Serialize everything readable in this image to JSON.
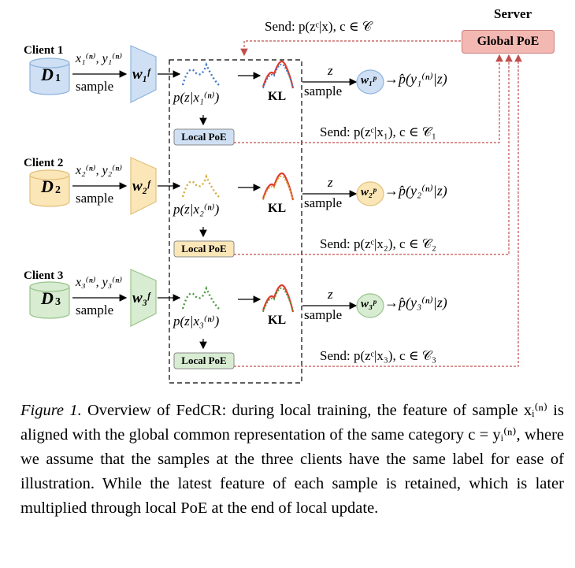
{
  "server": {
    "title": "Server",
    "global_label": "Global PoE",
    "send_global": "Send:  p(zᶜ|x), c ∈ 𝒞"
  },
  "clients": [
    {
      "name": "Client 1",
      "db": "D",
      "db_sub": "1",
      "xy": "x₁⁽ⁿ⁾, y₁⁽ⁿ⁾",
      "sample": "sample",
      "wf": "w₁ᶠ",
      "pz": "p(z|x₁⁽ⁿ⁾)",
      "kl": "KL",
      "z": "z",
      "sample2": "sample",
      "wp": "w₁ᵖ",
      "phat": "→p̂(y₁⁽ⁿ⁾|z)",
      "local_poe": "Local PoE",
      "send": "Send:  p(zᶜ|x₁), c ∈ 𝒞₁",
      "color_fill": "#cfe0f4",
      "color_stroke": "#8eb3dd",
      "curve_color": "#3c78c8"
    },
    {
      "name": "Client 2",
      "db": "D",
      "db_sub": "2",
      "xy": "x₂⁽ⁿ⁾, y₂⁽ⁿ⁾",
      "sample": "sample",
      "wf": "w₂ᶠ",
      "pz": "p(z|x₂⁽ⁿ⁾)",
      "kl": "KL",
      "z": "z",
      "sample2": "sample",
      "wp": "w₂ᵖ",
      "phat": "→p̂(y₂⁽ⁿ⁾|z)",
      "local_poe": "Local PoE",
      "send": "Send:  p(zᶜ|x₂), c ∈ 𝒞₂",
      "color_fill": "#fbe6b8",
      "color_stroke": "#e2c07a",
      "curve_color": "#d4aa3a"
    },
    {
      "name": "Client 3",
      "db": "D",
      "db_sub": "3",
      "xy": "x₃⁽ⁿ⁾, y₃⁽ⁿ⁾",
      "sample": "sample",
      "wf": "w₃ᶠ",
      "pz": "p(z|x₃⁽ⁿ⁾)",
      "kl": "KL",
      "z": "z",
      "sample2": "sample",
      "wp": "w₃ᵖ",
      "phat": "→p̂(y₃⁽ⁿ⁾|z)",
      "local_poe": "Local PoE",
      "send": "Send:  p(zᶜ|x₃), c ∈ 𝒞₃",
      "color_fill": "#d8ecd2",
      "color_stroke": "#98c48a",
      "curve_color": "#4c9a40"
    }
  ],
  "caption": {
    "label": "Figure 1.",
    "text": " Overview of FedCR: during local training, the feature of sample xᵢ⁽ⁿ⁾ is aligned with the global common representation of the same category c = yᵢ⁽ⁿ⁾, where we assume that the samples at the three clients have the same label for ease of illustration. While the latest feature of each sample is retained, which is later multiplied through local PoE at the end of local update."
  },
  "colors": {
    "send_line": "#c0504d",
    "dashed_box": "#000000",
    "kl_red": "#e03b2a"
  }
}
